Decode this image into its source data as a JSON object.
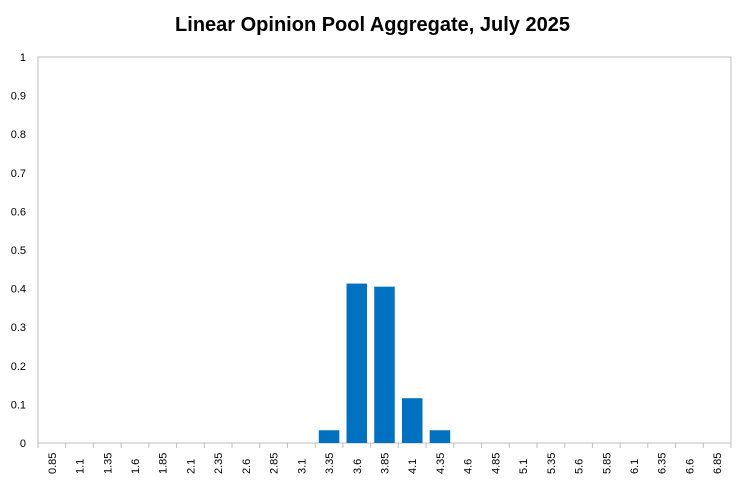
{
  "chart_data": {
    "type": "bar",
    "title": "Linear Opinion Pool Aggregate, July 2025",
    "categories": [
      "0.85",
      "1.1",
      "1.35",
      "1.6",
      "1.85",
      "2.1",
      "2.35",
      "2.6",
      "2.85",
      "3.1",
      "3.35",
      "3.6",
      "3.85",
      "4.1",
      "4.35",
      "4.6",
      "4.85",
      "5.1",
      "5.35",
      "5.6",
      "5.85",
      "6.1",
      "6.35",
      "6.6",
      "6.85"
    ],
    "values": [
      0,
      0,
      0,
      0,
      0,
      0,
      0,
      0,
      0,
      0,
      0.033,
      0.413,
      0.405,
      0.116,
      0.033,
      0,
      0,
      0,
      0,
      0,
      0,
      0,
      0,
      0,
      0
    ],
    "y_ticks": [
      "0",
      "0.1",
      "0.2",
      "0.3",
      "0.4",
      "0.5",
      "0.6",
      "0.7",
      "0.8",
      "0.9",
      "1"
    ],
    "ylim": [
      0,
      1
    ],
    "xlabel": "",
    "ylabel": "",
    "bar_color": "#0070c0",
    "grid": false,
    "legend": "none"
  }
}
